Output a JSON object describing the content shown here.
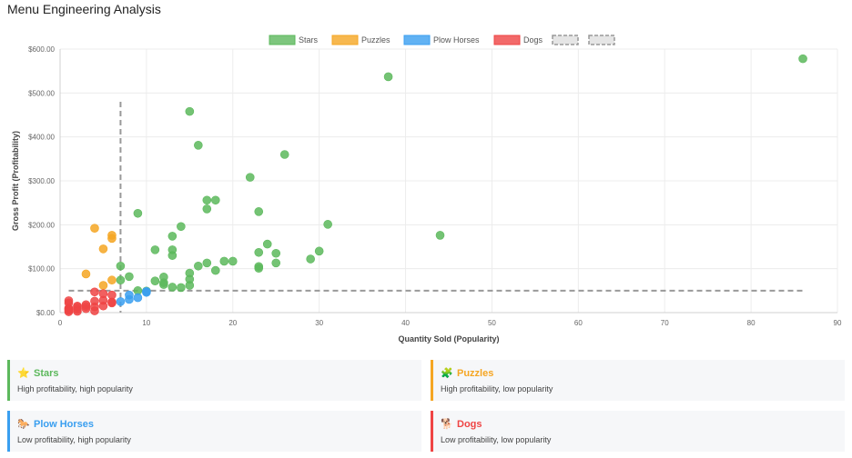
{
  "page": {
    "title": "Menu Engineering Analysis"
  },
  "colors": {
    "stars": "#5cb85c",
    "puzzles": "#f5a623",
    "plow_horses": "#3a9ff0",
    "dogs": "#ef4444",
    "threshold": "#999999"
  },
  "chart_data": {
    "type": "scatter",
    "xlabel": "Quantity Sold (Popularity)",
    "ylabel": "Gross Profit (Profitability)",
    "xlim": [
      0,
      90
    ],
    "ylim": [
      0,
      600
    ],
    "x_ticks": [
      "0",
      "10",
      "20",
      "30",
      "40",
      "50",
      "60",
      "70",
      "80",
      "90"
    ],
    "y_ticks": [
      "$0.00",
      "$100.00",
      "$200.00",
      "$300.00",
      "$400.00",
      "$500.00",
      "$600.00"
    ],
    "grid": true,
    "legend_position": "top-center",
    "thresholds": {
      "x": 7,
      "y": 50
    },
    "series": [
      {
        "name": "Stars",
        "key": "stars",
        "points": [
          [
            86,
            578
          ],
          [
            38,
            537
          ],
          [
            15,
            458
          ],
          [
            16,
            381
          ],
          [
            26,
            360
          ],
          [
            22,
            308
          ],
          [
            17,
            256
          ],
          [
            18,
            256
          ],
          [
            17,
            236
          ],
          [
            23,
            230
          ],
          [
            9,
            226
          ],
          [
            31,
            201
          ],
          [
            14,
            196
          ],
          [
            44,
            176
          ],
          [
            13,
            174
          ],
          [
            24,
            156
          ],
          [
            11,
            143
          ],
          [
            13,
            143
          ],
          [
            30,
            140
          ],
          [
            23,
            137
          ],
          [
            25,
            135
          ],
          [
            13,
            130
          ],
          [
            29,
            122
          ],
          [
            19,
            117
          ],
          [
            20,
            117
          ],
          [
            17,
            113
          ],
          [
            25,
            113
          ],
          [
            7,
            106
          ],
          [
            16,
            106
          ],
          [
            23,
            105
          ],
          [
            23,
            101
          ],
          [
            18,
            96
          ],
          [
            15,
            90
          ],
          [
            8,
            82
          ],
          [
            12,
            81
          ],
          [
            15,
            76
          ],
          [
            7,
            74
          ],
          [
            11,
            72
          ],
          [
            12,
            68
          ],
          [
            12,
            64
          ],
          [
            15,
            62
          ],
          [
            13,
            58
          ],
          [
            14,
            57
          ],
          [
            9,
            50
          ],
          [
            10,
            49
          ]
        ]
      },
      {
        "name": "Puzzles",
        "key": "puzzles",
        "points": [
          [
            4,
            192
          ],
          [
            6,
            176
          ],
          [
            6,
            169
          ],
          [
            5,
            145
          ],
          [
            3,
            88
          ],
          [
            6,
            74
          ],
          [
            5,
            62
          ]
        ]
      },
      {
        "name": "Plow Horses",
        "key": "plow_horses",
        "points": [
          [
            8,
            40
          ],
          [
            10,
            48
          ],
          [
            9,
            34
          ],
          [
            8,
            30
          ],
          [
            7,
            25
          ],
          [
            10,
            46
          ]
        ]
      },
      {
        "name": "Dogs",
        "key": "dogs",
        "points": [
          [
            4,
            47
          ],
          [
            5,
            43
          ],
          [
            6,
            40
          ],
          [
            1,
            27
          ],
          [
            4,
            26
          ],
          [
            6,
            24
          ],
          [
            1,
            22
          ],
          [
            3,
            18
          ],
          [
            2,
            15
          ],
          [
            5,
            15
          ],
          [
            4,
            13
          ],
          [
            2,
            12
          ],
          [
            1,
            10
          ],
          [
            3,
            9
          ],
          [
            1,
            8
          ],
          [
            2,
            7
          ],
          [
            1,
            5
          ],
          [
            4,
            4
          ],
          [
            2,
            3
          ],
          [
            1,
            2
          ],
          [
            3,
            14
          ],
          [
            5,
            28
          ],
          [
            6,
            22
          ]
        ]
      }
    ]
  },
  "cards": [
    {
      "key": "stars",
      "icon": "⭐",
      "title": "Stars",
      "desc": "High profitability, high popularity"
    },
    {
      "key": "puzzles",
      "icon": "🧩",
      "title": "Puzzles",
      "desc": "High profitability, low popularity"
    },
    {
      "key": "plow_horses",
      "icon": "🐎",
      "title": "Plow Horses",
      "desc": "Low profitability, high popularity"
    },
    {
      "key": "dogs",
      "icon": "🐕",
      "title": "Dogs",
      "desc": "Low profitability, low popularity"
    }
  ]
}
